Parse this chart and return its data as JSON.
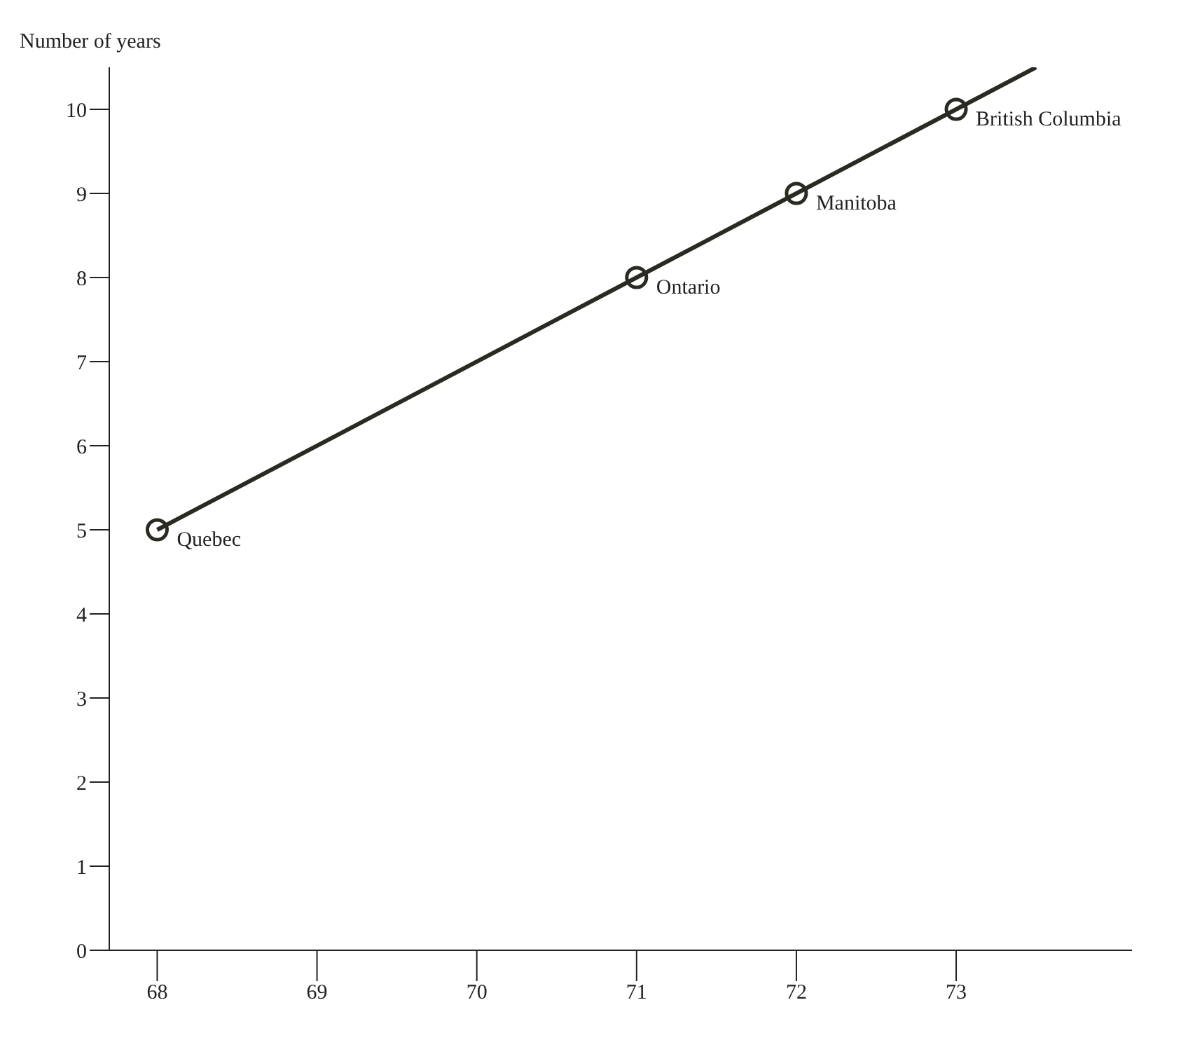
{
  "chart_data": {
    "type": "scatter",
    "ylabel": "Number of years",
    "series": [
      {
        "color": "#2a2a22",
        "x": [
          68,
          71,
          72,
          73
        ],
        "values": [
          5,
          8,
          9,
          10
        ],
        "marker": "circle"
      },
      {
        "type": "line",
        "color": "#2a2a22",
        "x": [
          68,
          71,
          72,
          73,
          73.5
        ],
        "values": [
          5,
          8,
          9,
          10,
          10.5
        ],
        "marker": "none"
      }
    ],
    "annotations": [
      {
        "text": "Quebec",
        "x": 68,
        "y": 5
      },
      {
        "text": "Ontario",
        "x": 71,
        "y": 8
      },
      {
        "text": "Manitoba",
        "x": 72,
        "y": 9
      },
      {
        "text": "British Columbia",
        "x": 73,
        "y": 10
      }
    ],
    "xlim": [
      67.7,
      74.1
    ],
    "xticks": [
      68,
      69,
      70,
      71,
      72,
      73
    ],
    "ylim": [
      0,
      10.5
    ],
    "yticks": [
      0,
      1,
      2,
      3,
      4,
      5,
      6,
      7,
      8,
      9,
      10
    ]
  }
}
